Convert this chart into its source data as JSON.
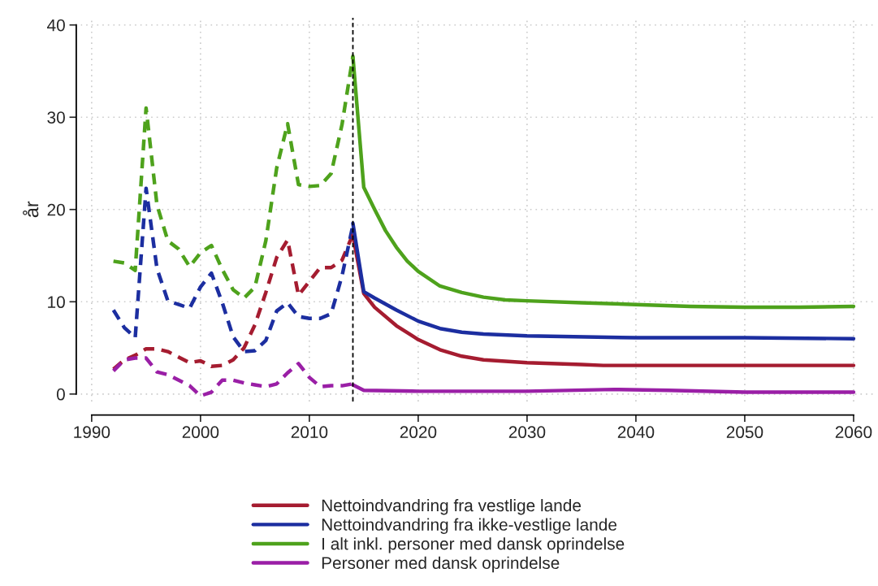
{
  "chart_data": {
    "type": "line",
    "ylabel": "år",
    "xlim": [
      1989,
      2062
    ],
    "ylim": [
      -0.8,
      40.8
    ],
    "xticks": [
      1990,
      2000,
      2010,
      2020,
      2030,
      2040,
      2050,
      2060
    ],
    "yticks": [
      0,
      10,
      20,
      30,
      40
    ],
    "grid": true,
    "legend": "bottom",
    "ref_lines": [
      {
        "axis": "x",
        "value": 2014,
        "color": "#000000",
        "line_style": "dashed"
      }
    ],
    "series": [
      {
        "color": "#a51c30",
        "line_style": "dashed",
        "x": [
          1992,
          1993,
          1994,
          1995,
          1996,
          1997,
          1998,
          1999,
          2000,
          2001,
          2002,
          2003,
          2004,
          2005,
          2006,
          2007,
          2008,
          2009,
          2010,
          2011,
          2012,
          2013,
          2014
        ],
        "values": [
          2.7,
          3.7,
          4.2,
          4.9,
          4.9,
          4.6,
          4.0,
          3.4,
          3.6,
          3.0,
          3.1,
          3.7,
          5.0,
          7.5,
          11.0,
          14.8,
          16.7,
          10.7,
          12.2,
          13.7,
          13.7,
          14.5,
          17.3
        ]
      },
      {
        "color": "#1c2ea0",
        "line_style": "dashed",
        "x": [
          1992,
          1993,
          1994,
          1995,
          1996,
          1997,
          1998,
          1999,
          2000,
          2001,
          2002,
          2003,
          2004,
          2005,
          2006,
          2007,
          2008,
          2009,
          2010,
          2011,
          2012,
          2013,
          2014
        ],
        "values": [
          9.1,
          7.2,
          6.1,
          22.3,
          13.6,
          10.1,
          9.7,
          9.3,
          11.6,
          13.1,
          9.9,
          6.2,
          4.6,
          4.7,
          5.8,
          9.0,
          9.9,
          8.4,
          8.2,
          8.2,
          8.7,
          12.8,
          18.3
        ]
      },
      {
        "color": "#4ea21c",
        "line_style": "dashed",
        "x": [
          1992,
          1993,
          1994,
          1995,
          1996,
          1997,
          1998,
          1999,
          2000,
          2001,
          2002,
          2003,
          2004,
          2005,
          2006,
          2007,
          2008,
          2009,
          2010,
          2011,
          2012,
          2013,
          2014
        ],
        "values": [
          14.4,
          14.2,
          13.4,
          31.0,
          20.5,
          16.6,
          15.7,
          13.8,
          15.3,
          16.1,
          13.5,
          11.3,
          10.4,
          11.6,
          16.6,
          24.5,
          29.3,
          22.7,
          22.5,
          22.6,
          23.9,
          29.2,
          36.6
        ]
      },
      {
        "color": "#9a1fa6",
        "line_style": "dashed",
        "x": [
          1992,
          1993,
          1994,
          1995,
          1996,
          1997,
          1998,
          1999,
          2000,
          2001,
          2002,
          2003,
          2004,
          2005,
          2006,
          2007,
          2008,
          2009,
          2010,
          2011,
          2012,
          2013,
          2014
        ],
        "values": [
          2.5,
          3.7,
          3.9,
          3.9,
          2.4,
          2.1,
          1.5,
          0.9,
          -0.2,
          0.2,
          1.5,
          1.5,
          1.2,
          1.0,
          0.8,
          1.1,
          2.3,
          3.3,
          1.8,
          0.8,
          0.9,
          0.9,
          1.1
        ]
      },
      {
        "name": "Nettoindvandring fra vestlige lande",
        "color": "#a51c30",
        "line_style": "solid",
        "x": [
          2014,
          2015,
          2016,
          2018,
          2020,
          2022,
          2024,
          2026,
          2030,
          2035,
          2037,
          2040,
          2050,
          2060
        ],
        "values": [
          17.2,
          10.9,
          9.4,
          7.4,
          5.9,
          4.8,
          4.1,
          3.7,
          3.4,
          3.2,
          3.1,
          3.1,
          3.1,
          3.1
        ]
      },
      {
        "name": "Nettoindvandring fra ikke-vestlige lande",
        "color": "#1c2ea0",
        "line_style": "solid",
        "x": [
          2014,
          2015,
          2016,
          2018,
          2020,
          2022,
          2024,
          2026,
          2030,
          2040,
          2050,
          2060
        ],
        "values": [
          18.5,
          11.1,
          10.4,
          9.1,
          7.9,
          7.1,
          6.7,
          6.5,
          6.3,
          6.1,
          6.1,
          6.0
        ]
      },
      {
        "name": "I alt inkl. personer med dansk oprindelse",
        "color": "#4ea21c",
        "line_style": "solid",
        "x": [
          2014,
          2015,
          2016,
          2017,
          2018,
          2019,
          2020,
          2022,
          2024,
          2026,
          2028,
          2030,
          2035,
          2040,
          2045,
          2050,
          2055,
          2060
        ],
        "values": [
          36.6,
          22.4,
          20.0,
          17.7,
          15.9,
          14.4,
          13.3,
          11.7,
          11.0,
          10.5,
          10.2,
          10.1,
          9.9,
          9.7,
          9.5,
          9.4,
          9.4,
          9.5
        ]
      },
      {
        "name": "Personer med dansk oprindelse",
        "color": "#9a1fa6",
        "line_style": "solid",
        "x": [
          2014,
          2015,
          2020,
          2030,
          2038,
          2043,
          2050,
          2060
        ],
        "values": [
          1.0,
          0.4,
          0.3,
          0.3,
          0.5,
          0.4,
          0.2,
          0.2
        ]
      }
    ]
  }
}
